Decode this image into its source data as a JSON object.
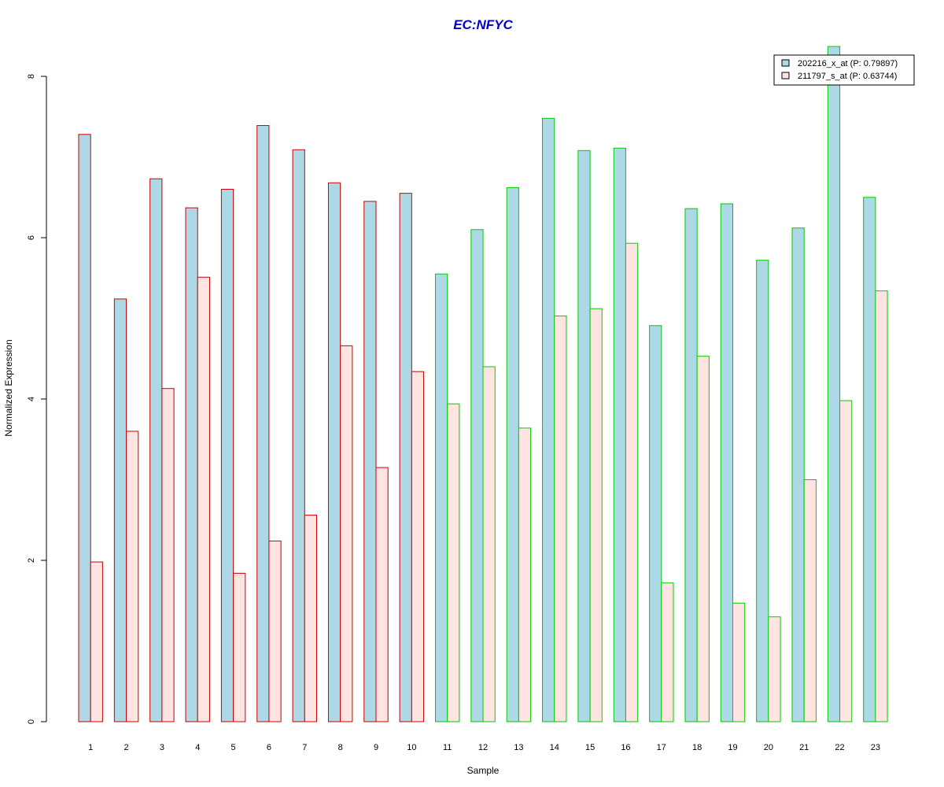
{
  "chart_data": {
    "type": "bar",
    "title": "EC:NFYC",
    "title_color": "#0000CC",
    "xlabel": "Sample",
    "ylabel": "Normalized Expression",
    "ylim": [
      0,
      8
    ],
    "yticks": [
      "0",
      "2",
      "4",
      "6",
      "8"
    ],
    "grid": false,
    "legend_position": "top-right",
    "categories": [
      "1",
      "2",
      "3",
      "4",
      "5",
      "6",
      "7",
      "8",
      "9",
      "10",
      "11",
      "12",
      "13",
      "14",
      "15",
      "16",
      "17",
      "18",
      "19",
      "20",
      "21",
      "22",
      "23"
    ],
    "group_border_colors": [
      "#CC0000",
      "#CC0000",
      "#CC0000",
      "#CC0000",
      "#CC0000",
      "#CC0000",
      "#CC0000",
      "#CC0000",
      "#CC0000",
      "#CC0000",
      "#00CC00",
      "#00CC00",
      "#00CC00",
      "#00CC00",
      "#00CC00",
      "#00CC00",
      "#00CC00",
      "#00CC00",
      "#00CC00",
      "#00CC00",
      "#00CC00",
      "#00CC00",
      "#00CC00"
    ],
    "series": [
      {
        "name": "202216_x_at (P: 0.79897)",
        "fill": "#ADD8E6",
        "values": [
          7.28,
          5.24,
          6.73,
          6.37,
          6.6,
          7.39,
          7.09,
          6.68,
          6.45,
          6.55,
          5.55,
          6.1,
          6.62,
          7.48,
          7.08,
          7.11,
          4.91,
          6.36,
          6.42,
          5.72,
          6.12,
          8.37,
          6.5
        ]
      },
      {
        "name": "211797_s_at (P: 0.63744)",
        "fill": "#FFE4E1",
        "values": [
          1.98,
          3.6,
          4.13,
          5.51,
          1.84,
          2.24,
          2.56,
          4.66,
          3.15,
          4.34,
          3.94,
          4.4,
          3.64,
          5.03,
          5.12,
          5.93,
          1.72,
          4.53,
          1.47,
          1.3,
          3.0,
          3.98,
          5.34
        ]
      }
    ]
  }
}
